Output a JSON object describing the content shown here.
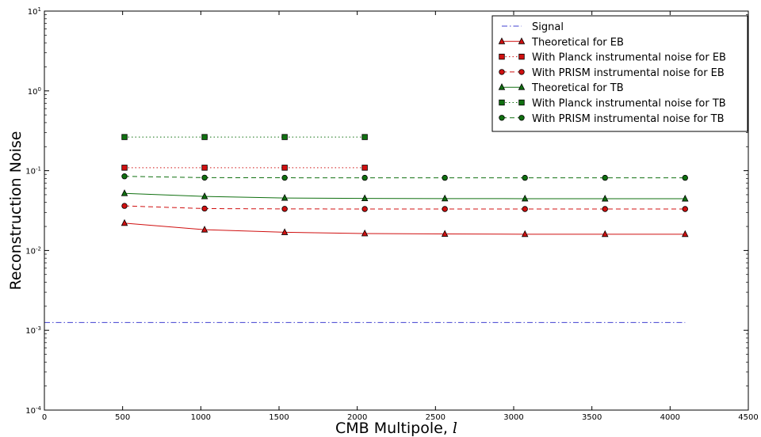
{
  "chart_data": {
    "type": "line",
    "title": "",
    "xlabel": "CMB Multipole, ",
    "xlabel_symbol": "l",
    "ylabel": "Reconstruction Noise",
    "xlim": [
      0,
      4500
    ],
    "ylim": [
      0.0001,
      10
    ],
    "yscale": "log",
    "x_ticks": [
      "0",
      "500",
      "1000",
      "1500",
      "2000",
      "2500",
      "3000",
      "3500",
      "4000",
      "4500"
    ],
    "y_ticks": [
      {
        "base": "10",
        "exp": "-4"
      },
      {
        "base": "10",
        "exp": "-3"
      },
      {
        "base": "10",
        "exp": "-2"
      },
      {
        "base": "10",
        "exp": "-1"
      },
      {
        "base": "10",
        "exp": "0"
      },
      {
        "base": "10",
        "exp": "1"
      }
    ],
    "grid": false,
    "legend_position": "top-right",
    "series": [
      {
        "name": "Signal",
        "color": "#4040d0",
        "marker": "none",
        "linestyle": "dashdot",
        "x": [
          0,
          4096
        ],
        "y": [
          0.00125,
          0.00125
        ]
      },
      {
        "name": "Theoretical for EB",
        "color": "#d01010",
        "marker": "triangle",
        "linestyle": "solid",
        "x": [
          512,
          1024,
          1536,
          2048,
          2560,
          3072,
          3584,
          4096
        ],
        "y": [
          0.022,
          0.0182,
          0.0169,
          0.0163,
          0.0161,
          0.016,
          0.016,
          0.016
        ]
      },
      {
        "name": "With Planck instrumental noise for EB",
        "color": "#d01010",
        "marker": "square",
        "linestyle": "dotted",
        "x": [
          512,
          1024,
          1536,
          2048
        ],
        "y": [
          0.109,
          0.109,
          0.109,
          0.109
        ]
      },
      {
        "name": "With PRISM instrumental noise for EB",
        "color": "#d01010",
        "marker": "circle",
        "linestyle": "dashed",
        "x": [
          512,
          1024,
          1536,
          2048,
          2560,
          3072,
          3584,
          4096
        ],
        "y": [
          0.0362,
          0.0335,
          0.0332,
          0.0331,
          0.0331,
          0.0331,
          0.0331,
          0.0331
        ]
      },
      {
        "name": "Theoretical for TB",
        "color": "#107010",
        "marker": "triangle",
        "linestyle": "solid",
        "x": [
          512,
          1024,
          1536,
          2048,
          2560,
          3072,
          3584,
          4096
        ],
        "y": [
          0.052,
          0.0476,
          0.0455,
          0.0449,
          0.0447,
          0.0446,
          0.0445,
          0.0445
        ]
      },
      {
        "name": "With Planck instrumental noise for TB",
        "color": "#107010",
        "marker": "square",
        "linestyle": "dotted",
        "x": [
          512,
          1024,
          1536,
          2048
        ],
        "y": [
          0.264,
          0.264,
          0.264,
          0.264
        ]
      },
      {
        "name": "With PRISM instrumental noise for TB",
        "color": "#107010",
        "marker": "circle",
        "linestyle": "dashed",
        "x": [
          512,
          1024,
          1536,
          2048,
          2560,
          3072,
          3584,
          4096
        ],
        "y": [
          0.085,
          0.0818,
          0.0815,
          0.0814,
          0.0814,
          0.0814,
          0.0814,
          0.0814
        ]
      }
    ]
  }
}
